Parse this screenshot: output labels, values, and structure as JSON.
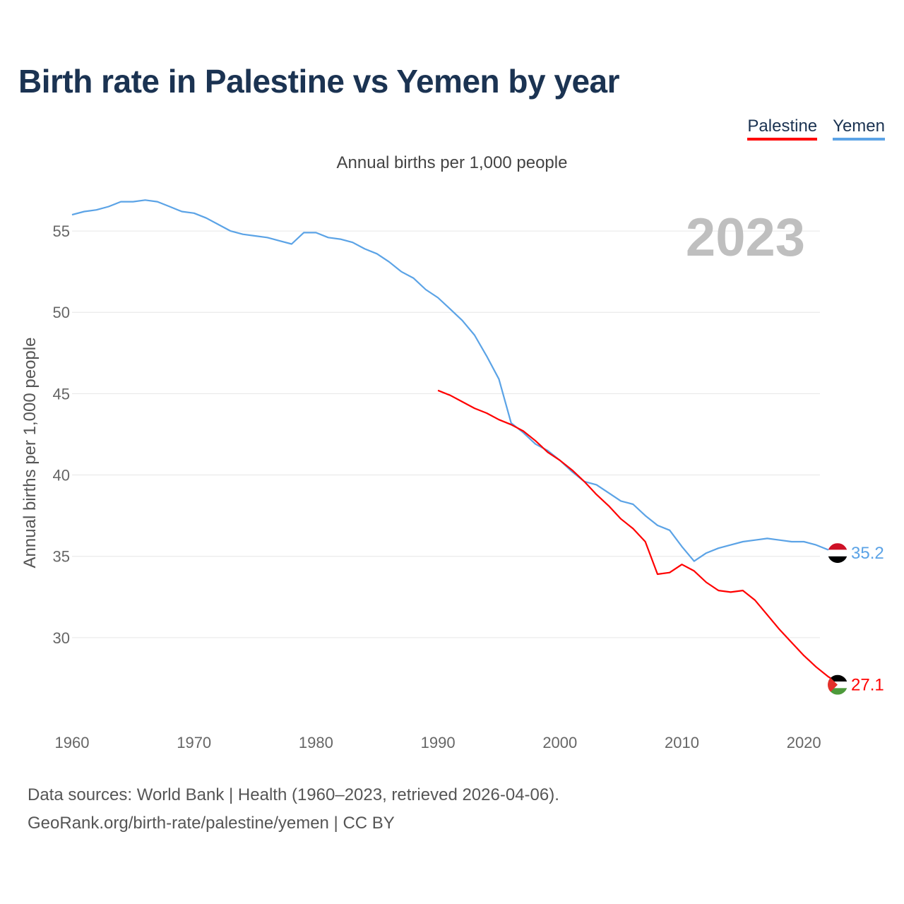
{
  "title": "Birth rate in Palestine vs Yemen by year",
  "legend": [
    {
      "name": "Palestine",
      "color": "#ff0000"
    },
    {
      "name": "Yemen",
      "color": "#5ba3e6"
    }
  ],
  "subtitle": "Annual births per 1,000 people",
  "footer": {
    "line1": "Data sources: World Bank | Health (1960–2023, retrieved 2026-04-06).",
    "line2": "GeoRank.org/birth-rate/palestine/yemen | CC BY"
  },
  "chart_data": {
    "type": "line",
    "title": "Birth rate in Palestine vs Yemen by year",
    "ylabel": "Annual births per 1,000 people",
    "xlabel": "",
    "year_label": "2023",
    "xlim": [
      1960,
      2023
    ],
    "ylim": [
      25,
      58
    ],
    "xticks": [
      "1960",
      "1970",
      "1980",
      "1990",
      "2000",
      "2010",
      "2020"
    ],
    "yticks": [
      "30",
      "35",
      "40",
      "45",
      "50",
      "55"
    ],
    "grid": true,
    "series": [
      {
        "name": "Yemen",
        "color": "#5ba3e6",
        "end_label": "35.2",
        "flag": "yemen-flag-icon",
        "x": [
          1960,
          1961,
          1962,
          1963,
          1964,
          1965,
          1966,
          1967,
          1968,
          1969,
          1970,
          1971,
          1972,
          1973,
          1974,
          1975,
          1976,
          1977,
          1978,
          1979,
          1980,
          1981,
          1982,
          1983,
          1984,
          1985,
          1986,
          1987,
          1988,
          1989,
          1990,
          1991,
          1992,
          1993,
          1994,
          1995,
          1996,
          1997,
          1998,
          1999,
          2000,
          2001,
          2002,
          2003,
          2004,
          2005,
          2006,
          2007,
          2008,
          2009,
          2010,
          2011,
          2012,
          2013,
          2014,
          2015,
          2016,
          2017,
          2018,
          2019,
          2020,
          2021,
          2022,
          2023
        ],
        "y": [
          56.0,
          56.2,
          56.3,
          56.5,
          56.8,
          56.8,
          56.9,
          56.8,
          56.5,
          56.2,
          56.1,
          55.8,
          55.4,
          55.0,
          54.8,
          54.7,
          54.6,
          54.4,
          54.2,
          54.9,
          54.9,
          54.6,
          54.5,
          54.3,
          53.9,
          53.6,
          53.1,
          52.5,
          52.1,
          51.4,
          50.9,
          50.2,
          49.5,
          48.6,
          47.3,
          45.9,
          43.2,
          42.6,
          41.9,
          41.5,
          40.9,
          40.2,
          39.6,
          39.4,
          38.9,
          38.4,
          38.2,
          37.5,
          36.9,
          36.6,
          35.6,
          34.7,
          35.2,
          35.5,
          35.7,
          35.9,
          36.0,
          36.1,
          36.0,
          35.9,
          35.9,
          35.7,
          35.4,
          35.2
        ]
      },
      {
        "name": "Palestine",
        "color": "#ff0000",
        "end_label": "27.1",
        "flag": "palestine-flag-icon",
        "x": [
          1990,
          1991,
          1992,
          1993,
          1994,
          1995,
          1996,
          1997,
          1998,
          1999,
          2000,
          2001,
          2002,
          2003,
          2004,
          2005,
          2006,
          2007,
          2008,
          2009,
          2010,
          2011,
          2012,
          2013,
          2014,
          2015,
          2016,
          2017,
          2018,
          2019,
          2020,
          2021,
          2022,
          2023
        ],
        "y": [
          45.2,
          44.9,
          44.5,
          44.1,
          43.8,
          43.4,
          43.1,
          42.7,
          42.1,
          41.4,
          40.9,
          40.3,
          39.6,
          38.8,
          38.1,
          37.3,
          36.7,
          35.9,
          33.9,
          34.0,
          34.5,
          34.1,
          33.4,
          32.9,
          32.8,
          32.9,
          32.3,
          31.4,
          30.5,
          29.7,
          28.9,
          28.2,
          27.6,
          27.1
        ]
      }
    ]
  }
}
